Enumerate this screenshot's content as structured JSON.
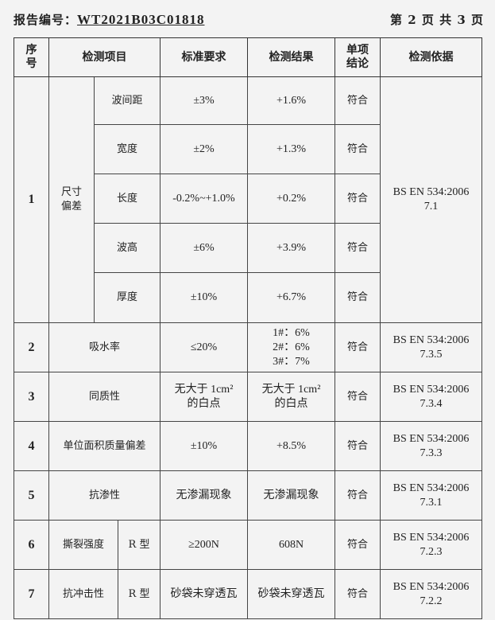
{
  "header": {
    "report_no_label": "报告编号：",
    "report_no": "WT2021B03C01818",
    "page": "第 2 页 共 3 页"
  },
  "columns": [
    "序号",
    "检测项目",
    "标准要求",
    "检测结果",
    "单项结论",
    "检测依据"
  ],
  "row1": {
    "no": "1",
    "item": "尺寸偏差",
    "basis": "BS EN 534:2006 7.1",
    "subs": [
      {
        "name": "波间距",
        "req": "±3%",
        "result": "+1.6%",
        "conclusion": "符合"
      },
      {
        "name": "宽度",
        "req": "±2%",
        "result": "+1.3%",
        "conclusion": "符合"
      },
      {
        "name": "长度",
        "req": "-0.2%~+1.0%",
        "result": "+0.2%",
        "conclusion": "符合"
      },
      {
        "name": "波高",
        "req": "±6%",
        "result": "+3.9%",
        "conclusion": "符合"
      },
      {
        "name": "厚度",
        "req": "±10%",
        "result": "+6.7%",
        "conclusion": "符合"
      }
    ]
  },
  "rows": [
    {
      "no": "2",
      "item": "吸水率",
      "req": "≤20%",
      "result": "1#：6%\n2#：6%\n3#：7%",
      "conclusion": "符合",
      "basis": "BS EN 534:2006\n7.3.5"
    },
    {
      "no": "3",
      "item": "同质性",
      "req": "无大于 1cm²\n的白点",
      "result": "无大于 1cm²\n的白点",
      "conclusion": "符合",
      "basis": "BS EN 534:2006\n7.3.4"
    },
    {
      "no": "4",
      "item": "单位面积质量偏差",
      "req": "±10%",
      "result": "+8.5%",
      "conclusion": "符合",
      "basis": "BS EN 534:2006\n7.3.3"
    },
    {
      "no": "5",
      "item": "抗渗性",
      "req": "无渗漏现象",
      "result": "无渗漏现象",
      "conclusion": "符合",
      "basis": "BS EN 534:2006\n7.3.1"
    },
    {
      "no": "6",
      "item": "撕裂强度",
      "type": "R 型",
      "req": "≥200N",
      "result": "608N",
      "conclusion": "符合",
      "basis": "BS EN 534:2006\n7.2.3"
    },
    {
      "no": "7",
      "item": "抗冲击性",
      "type": "R 型",
      "req": "砂袋未穿透瓦",
      "result": "砂袋未穿透瓦",
      "conclusion": "符合",
      "basis": "BS EN 534:2006\n7.2.2"
    }
  ]
}
